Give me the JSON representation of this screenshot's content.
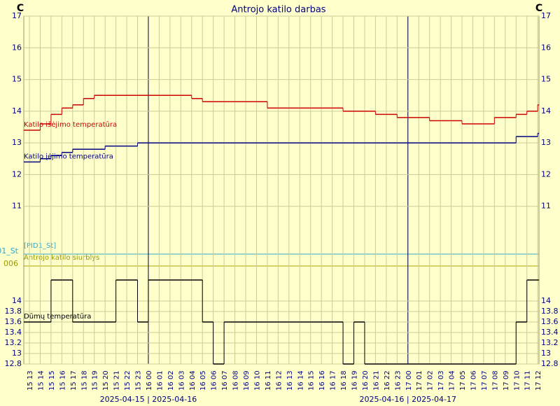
{
  "chart_data": [
    {
      "type": "line",
      "title": "Antrojo katilo darbas",
      "y_unit_left": "C",
      "y_unit_right": "C",
      "categories": [
        "15 13",
        "15 14",
        "15 15",
        "15 16",
        "15 17",
        "15 18",
        "15 19",
        "15 20",
        "15 21",
        "15 22",
        "15 23",
        "16 00",
        "16 01",
        "16 02",
        "16 03",
        "16 04",
        "16 05",
        "16 06",
        "16 07",
        "16 08",
        "16 09",
        "16 10",
        "16 11",
        "16 12",
        "16 13",
        "16 14",
        "16 15",
        "16 16",
        "16 17",
        "16 18",
        "16 19",
        "16 20",
        "16 21",
        "16 22",
        "16 23",
        "17 00",
        "17 01",
        "17 02",
        "17 03",
        "17 04",
        "17 05",
        "17 06",
        "17 07",
        "17 08",
        "17 09",
        "17 10",
        "17 11",
        "17 12"
      ],
      "date_labels": [
        "2025-04-15 | 2025-04-16",
        "2025-04-16 | 2025-04-17"
      ],
      "ylim": [
        10,
        17
      ],
      "yticks": [
        11,
        12,
        13,
        14,
        15,
        16,
        17
      ],
      "grid": true,
      "series": [
        {
          "name": "Katilo išėjimo temperatūra",
          "color": "#cc0000",
          "values": [
            13.4,
            13.6,
            13.9,
            14.1,
            14.2,
            14.4,
            14.5,
            14.5,
            14.5,
            14.5,
            14.5,
            14.5,
            14.5,
            14.5,
            14.5,
            14.4,
            14.3,
            14.3,
            14.3,
            14.3,
            14.3,
            14.3,
            14.1,
            14.1,
            14.1,
            14.1,
            14.1,
            14.1,
            14.1,
            14.0,
            14.0,
            14.0,
            13.9,
            13.9,
            13.8,
            13.8,
            13.8,
            13.7,
            13.7,
            13.7,
            13.6,
            13.6,
            13.6,
            13.8,
            13.8,
            13.9,
            14.0,
            14.2
          ]
        },
        {
          "name": "Katilo įėjimo temperatūra",
          "color": "#000080",
          "values": [
            12.4,
            12.5,
            12.6,
            12.7,
            12.8,
            12.8,
            12.8,
            12.9,
            12.9,
            12.9,
            13.0,
            13.0,
            13.0,
            13.0,
            13.0,
            13.0,
            13.0,
            13.0,
            13.0,
            13.0,
            13.0,
            13.0,
            13.0,
            13.0,
            13.0,
            13.0,
            13.0,
            13.0,
            13.0,
            13.0,
            13.0,
            13.0,
            13.0,
            13.0,
            13.0,
            13.0,
            13.0,
            13.0,
            13.0,
            13.0,
            13.0,
            13.0,
            13.0,
            13.0,
            13.0,
            13.2,
            13.2,
            13.3
          ]
        }
      ]
    },
    {
      "type": "line",
      "annotations": [
        "[PID1_St]",
        "01_St",
        "Antrojo katilo siurblys",
        "006"
      ],
      "ylim": [
        12.8,
        14.4
      ],
      "yticks": [
        12.8,
        13,
        13.2,
        13.4,
        13.6,
        13.8,
        14
      ],
      "grid": true,
      "series": [
        {
          "name": "Dūmų temperatūra",
          "color": "#000000",
          "values": [
            13.6,
            13.6,
            14.4,
            14.4,
            13.6,
            13.6,
            13.6,
            13.6,
            14.4,
            14.4,
            13.6,
            14.4,
            14.4,
            14.4,
            14.4,
            14.4,
            13.6,
            12.8,
            13.6,
            13.6,
            13.6,
            13.6,
            13.6,
            13.6,
            13.6,
            13.6,
            13.6,
            13.6,
            13.6,
            12.8,
            13.6,
            12.8,
            12.8,
            12.8,
            12.8,
            12.8,
            12.8,
            12.8,
            12.8,
            12.8,
            12.8,
            12.8,
            12.8,
            12.8,
            12.8,
            13.6,
            14.4,
            14.4
          ]
        }
      ]
    }
  ]
}
